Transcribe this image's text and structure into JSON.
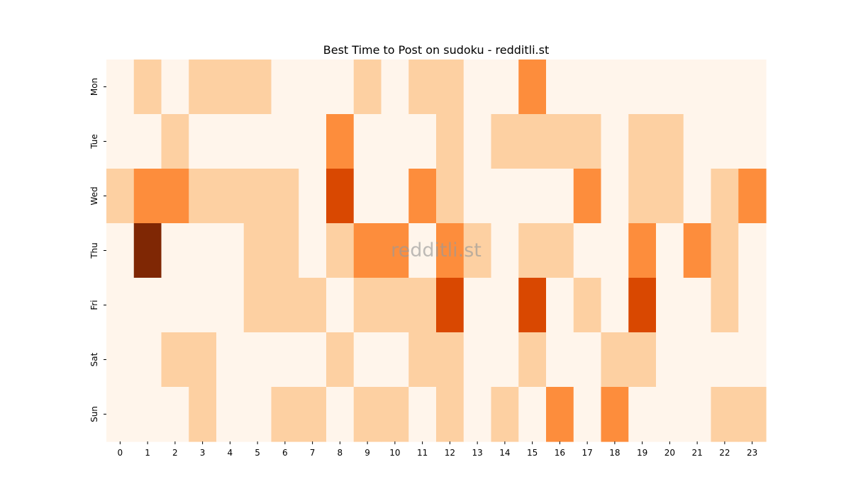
{
  "chart_data": {
    "type": "heatmap",
    "title": "Best Time to Post on sudoku - redditli.st",
    "watermark": "redditli.st",
    "x_categories": [
      "0",
      "1",
      "2",
      "3",
      "4",
      "5",
      "6",
      "7",
      "8",
      "9",
      "10",
      "11",
      "12",
      "13",
      "14",
      "15",
      "16",
      "17",
      "18",
      "19",
      "20",
      "21",
      "22",
      "23"
    ],
    "y_categories": [
      "Mon",
      "Tue",
      "Wed",
      "Thu",
      "Fri",
      "Sat",
      "Sun"
    ],
    "xlabel": "",
    "ylabel": "",
    "values": [
      [
        0,
        1,
        0,
        1,
        1,
        1,
        0,
        0,
        0,
        1,
        0,
        1,
        1,
        0,
        0,
        2,
        0,
        0,
        0,
        0,
        0,
        0,
        0,
        0
      ],
      [
        0,
        0,
        1,
        0,
        0,
        0,
        0,
        0,
        2,
        0,
        0,
        0,
        1,
        0,
        1,
        1,
        1,
        1,
        0,
        1,
        1,
        0,
        0,
        0
      ],
      [
        1,
        2,
        2,
        1,
        1,
        1,
        1,
        0,
        3,
        0,
        0,
        2,
        1,
        0,
        0,
        0,
        0,
        2,
        0,
        1,
        1,
        0,
        1,
        2
      ],
      [
        0,
        4,
        0,
        0,
        0,
        1,
        1,
        0,
        1,
        2,
        2,
        0,
        2,
        1,
        0,
        1,
        1,
        0,
        0,
        2,
        0,
        2,
        1,
        0
      ],
      [
        0,
        0,
        0,
        0,
        0,
        1,
        1,
        1,
        0,
        1,
        1,
        1,
        3,
        0,
        0,
        3,
        0,
        1,
        0,
        3,
        0,
        0,
        1,
        0
      ],
      [
        0,
        0,
        1,
        1,
        0,
        0,
        0,
        0,
        1,
        0,
        0,
        1,
        1,
        0,
        0,
        1,
        0,
        0,
        1,
        1,
        0,
        0,
        0,
        0
      ],
      [
        0,
        0,
        0,
        1,
        0,
        0,
        1,
        1,
        0,
        1,
        1,
        0,
        1,
        0,
        1,
        0,
        2,
        0,
        2,
        0,
        0,
        0,
        1,
        1
      ]
    ],
    "color_scale": [
      "#fff5eb",
      "#fdd0a2",
      "#fd8d3c",
      "#d94801",
      "#7f2704"
    ],
    "colorbar": false,
    "grid": false
  }
}
